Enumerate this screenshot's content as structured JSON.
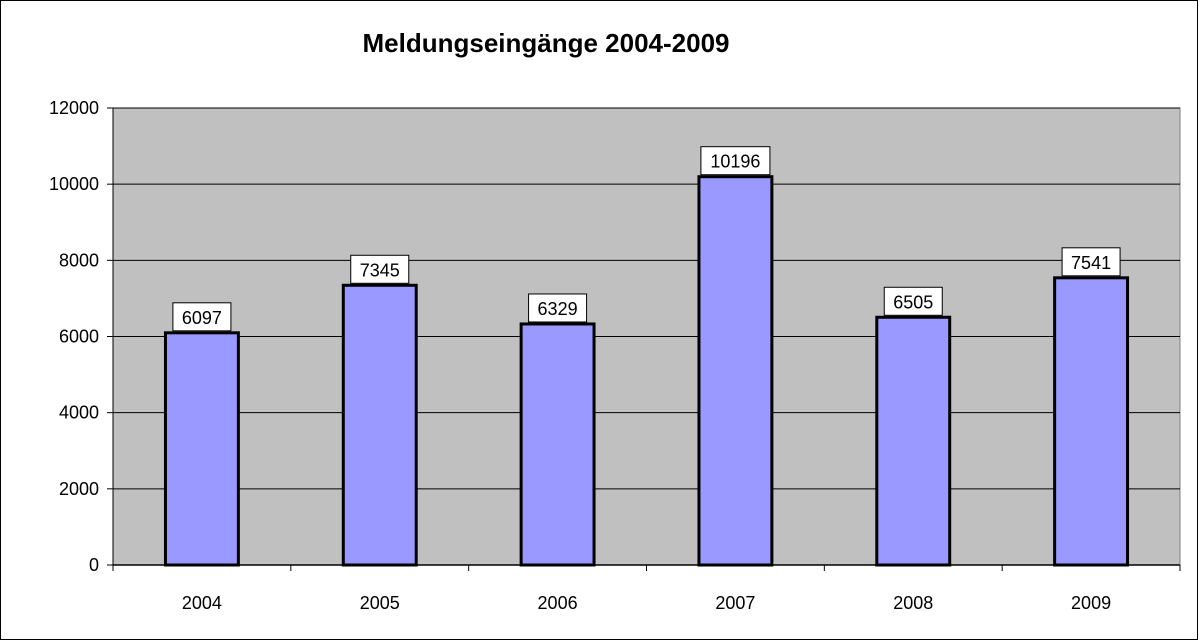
{
  "chart_data": {
    "type": "bar",
    "title": "Meldungseingänge 2004-2009",
    "categories": [
      "2004",
      "2005",
      "2006",
      "2007",
      "2008",
      "2009"
    ],
    "values": [
      6097,
      7345,
      6329,
      10196,
      6505,
      7541
    ],
    "data_labels": [
      "6097",
      "7345",
      "6329",
      "10196",
      "6505",
      "7541"
    ],
    "ylim": [
      0,
      12000
    ],
    "yticks": [
      0,
      2000,
      4000,
      6000,
      8000,
      10000,
      12000
    ],
    "ytick_labels": [
      "0",
      "2000",
      "4000",
      "6000",
      "8000",
      "10000",
      "12000"
    ],
    "xlabel": "",
    "ylabel": "",
    "grid": true,
    "legend": "none",
    "colors": {
      "bar_fill": "#9999ff",
      "bar_stroke": "#000000",
      "plot_background": "#c0c0c0",
      "gridline": "#000000"
    }
  }
}
